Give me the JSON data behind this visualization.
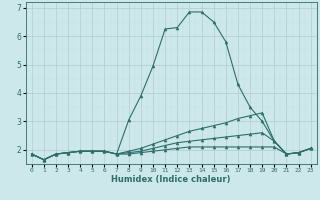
{
  "xlabel": "Humidex (Indice chaleur)",
  "background_color": "#cce8ea",
  "line_color": "#2d6e6a",
  "grid_color_major": "#b0cccc",
  "grid_color_minor": "#c8e0e0",
  "xlim": [
    -0.5,
    23.5
  ],
  "ylim": [
    1.5,
    7.2
  ],
  "yticks": [
    2,
    3,
    4,
    5,
    6,
    7
  ],
  "xticks": [
    0,
    1,
    2,
    3,
    4,
    5,
    6,
    7,
    8,
    9,
    10,
    11,
    12,
    13,
    14,
    15,
    16,
    17,
    18,
    19,
    20,
    21,
    22,
    23
  ],
  "series": [
    {
      "x": [
        0,
        1,
        2,
        3,
        4,
        5,
        6,
        7,
        8,
        9,
        10,
        11,
        12,
        13,
        14,
        15,
        16,
        17,
        18,
        19,
        20,
        21,
        22,
        23
      ],
      "y": [
        1.85,
        1.65,
        1.85,
        1.9,
        1.95,
        1.95,
        1.95,
        1.85,
        3.05,
        3.9,
        4.95,
        6.25,
        6.3,
        6.85,
        6.85,
        6.5,
        5.8,
        4.3,
        3.5,
        3.0,
        2.3,
        1.85,
        1.9,
        2.05
      ]
    },
    {
      "x": [
        0,
        1,
        2,
        3,
        4,
        5,
        6,
        7,
        8,
        9,
        10,
        11,
        12,
        13,
        14,
        15,
        16,
        17,
        18,
        19,
        20,
        21,
        22,
        23
      ],
      "y": [
        1.85,
        1.65,
        1.85,
        1.9,
        1.95,
        1.95,
        1.95,
        1.85,
        1.95,
        2.05,
        2.2,
        2.35,
        2.5,
        2.65,
        2.75,
        2.85,
        2.95,
        3.1,
        3.2,
        3.3,
        2.3,
        1.85,
        1.9,
        2.05
      ]
    },
    {
      "x": [
        0,
        1,
        2,
        3,
        4,
        5,
        6,
        7,
        8,
        9,
        10,
        11,
        12,
        13,
        14,
        15,
        16,
        17,
        18,
        19,
        20,
        21,
        22,
        23
      ],
      "y": [
        1.85,
        1.65,
        1.85,
        1.9,
        1.95,
        1.95,
        1.95,
        1.85,
        1.9,
        1.95,
        2.05,
        2.15,
        2.25,
        2.3,
        2.35,
        2.4,
        2.45,
        2.5,
        2.55,
        2.6,
        2.3,
        1.85,
        1.9,
        2.05
      ]
    },
    {
      "x": [
        0,
        1,
        2,
        3,
        4,
        5,
        6,
        7,
        8,
        9,
        10,
        11,
        12,
        13,
        14,
        15,
        16,
        17,
        18,
        19,
        20,
        21,
        22,
        23
      ],
      "y": [
        1.85,
        1.65,
        1.85,
        1.9,
        1.95,
        1.95,
        1.95,
        1.85,
        1.85,
        1.9,
        1.95,
        2.0,
        2.05,
        2.1,
        2.1,
        2.1,
        2.1,
        2.1,
        2.1,
        2.1,
        2.1,
        1.85,
        1.9,
        2.05
      ]
    }
  ]
}
